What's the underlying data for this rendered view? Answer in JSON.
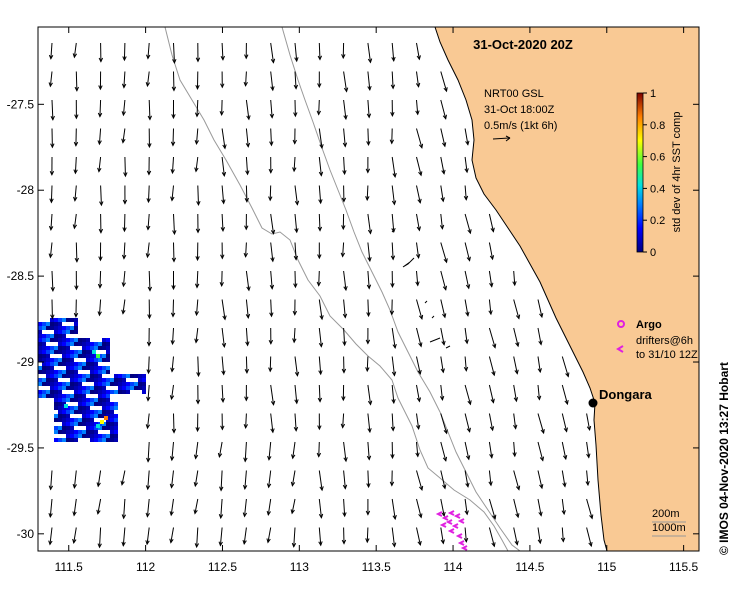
{
  "map": {
    "title": "31-Oct-2020 20Z",
    "x_range": [
      111.3,
      115.6
    ],
    "y_range": [
      -30.1,
      -27.05
    ],
    "x_ticks": [
      111.5,
      112,
      112.5,
      113,
      113.5,
      114,
      114.5,
      115,
      115.5
    ],
    "x_tick_labels": [
      "111.5",
      "112",
      "112.5",
      "113",
      "113.5",
      "114",
      "114.5",
      "115",
      "115.5"
    ],
    "y_ticks": [
      -27.5,
      -28,
      -28.5,
      -29,
      -29.5,
      -30
    ],
    "y_tick_labels": [
      "-27.5",
      "-28",
      "-28.5",
      "-29",
      "-29.5",
      "-30"
    ],
    "land_color": "#f9c994",
    "isobath_color": "#999999"
  },
  "annotation": {
    "line1": "NRT00 GSL",
    "line2": "31-Oct 18:00Z",
    "line3": "0.5m/s (1kt 6h)"
  },
  "colorbar": {
    "label": "std dev of 4hr SST comp",
    "tick_labels": [
      "1",
      "0.8",
      "0.6",
      "0.4",
      "0.2",
      "0"
    ]
  },
  "legend": {
    "argo_label": "Argo",
    "drifter_line1": "drifters@6h",
    "drifter_line2": "to 31/10 12Z",
    "argo_color": "#e020e0"
  },
  "place": {
    "name": "Dongara",
    "lon": 114.9,
    "lat": -29.25
  },
  "isobath_labels": {
    "a": "200m",
    "b": "1000m"
  },
  "credit": "© IMOS 04-Nov-2020 13:27 Hobart"
}
